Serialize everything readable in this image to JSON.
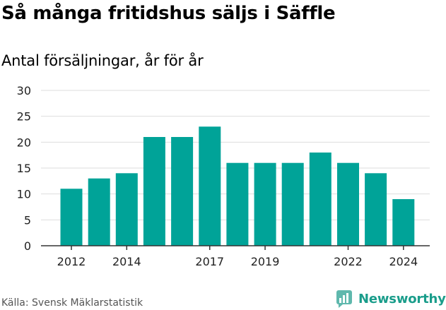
{
  "header": {
    "title": "Så många fritidshus säljs i Säffle",
    "subtitle": "Antal försäljningar, år för år"
  },
  "footer": {
    "source": "Källa: Svensk Mäklarstatistik",
    "brand": "Newsworthy",
    "brand_icon": "newsworthy-logo-icon"
  },
  "colors": {
    "bar": "#00a398",
    "grid": "#dddddd",
    "brand": "#1a9d8b"
  },
  "chart_data": {
    "type": "bar",
    "categories": [
      "2012",
      "2013",
      "2014",
      "2015",
      "2016",
      "2017",
      "2018",
      "2019",
      "2020",
      "2021",
      "2022",
      "2023",
      "2024"
    ],
    "values": [
      11,
      13,
      14,
      21,
      21,
      23,
      16,
      16,
      16,
      18,
      16,
      14,
      9
    ],
    "x_tick_labels": [
      "2012",
      "2014",
      "2017",
      "2019",
      "2022",
      "2024"
    ],
    "y_ticks": [
      0,
      5,
      10,
      15,
      20,
      25,
      30
    ],
    "ylim": [
      0,
      30
    ],
    "grid": true,
    "legend": "none"
  }
}
